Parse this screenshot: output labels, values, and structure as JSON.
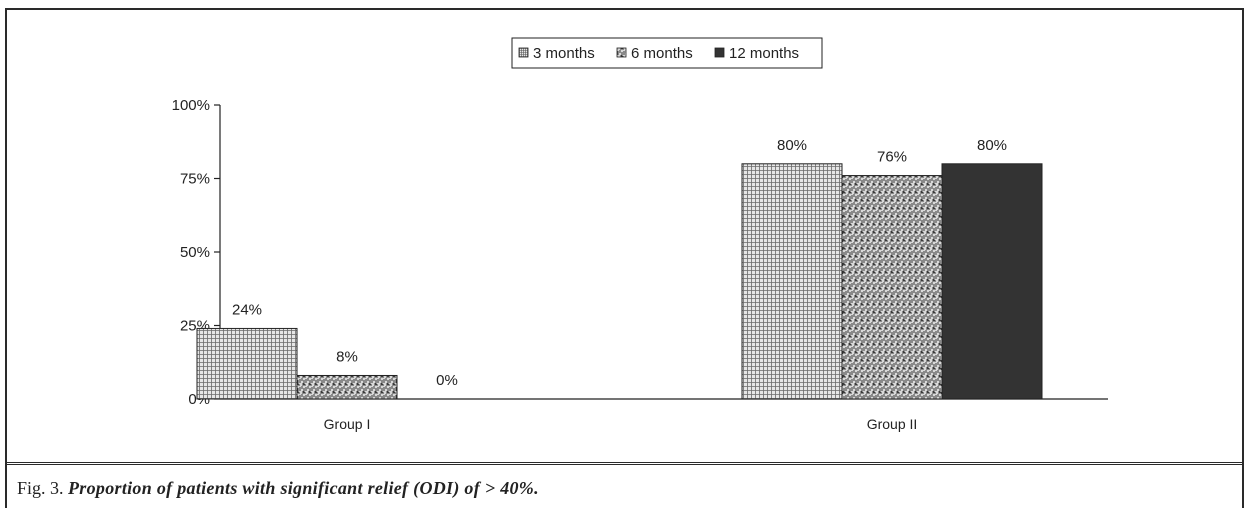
{
  "chart_data": {
    "type": "bar",
    "categories": [
      "Group I",
      "Group II"
    ],
    "series": [
      {
        "name": "3 months",
        "values": [
          24,
          80
        ],
        "labels": [
          "24%",
          "80%"
        ]
      },
      {
        "name": "6 months",
        "values": [
          8,
          76
        ],
        "labels": [
          "8%",
          "76%"
        ]
      },
      {
        "name": "12 months",
        "values": [
          0,
          80
        ],
        "labels": [
          "0%",
          "80%"
        ]
      }
    ],
    "yticks": [
      "0%",
      "25%",
      "50%",
      "75%",
      "100%"
    ],
    "ylim": [
      0,
      100
    ],
    "legend_position": "top-center",
    "grid": false
  },
  "caption": {
    "fig": "Fig. 3.",
    "text": "Proportion of patients with significant relief (ODI) of > 40%."
  },
  "colors": {
    "series_3_months": "#cfcfcf",
    "series_6_months": "#8a8a8a",
    "series_12_months": "#333333",
    "axis": "#222222"
  }
}
